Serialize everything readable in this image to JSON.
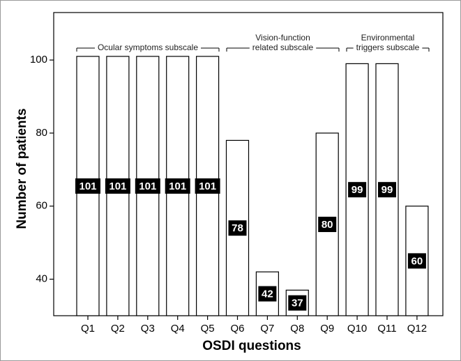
{
  "chart_data": {
    "type": "bar",
    "x_label": "OSDI questions",
    "y_label": "Number of patients",
    "categories": [
      "Q1",
      "Q2",
      "Q3",
      "Q4",
      "Q5",
      "Q6",
      "Q7",
      "Q8",
      "Q9",
      "Q10",
      "Q11",
      "Q12"
    ],
    "values": [
      101,
      101,
      101,
      101,
      101,
      78,
      42,
      37,
      80,
      99,
      99,
      60
    ],
    "color": "#ffffff",
    "ylim": [
      30,
      113
    ],
    "yticks": [
      40,
      60,
      80,
      100
    ],
    "annotations": [
      {
        "lines": [
          "Ocular symptoms subscale"
        ]
      },
      {
        "lines": [
          "Vision-function",
          "related subscale"
        ]
      },
      {
        "lines": [
          "Environmental",
          "triggers subscale"
        ]
      }
    ]
  }
}
